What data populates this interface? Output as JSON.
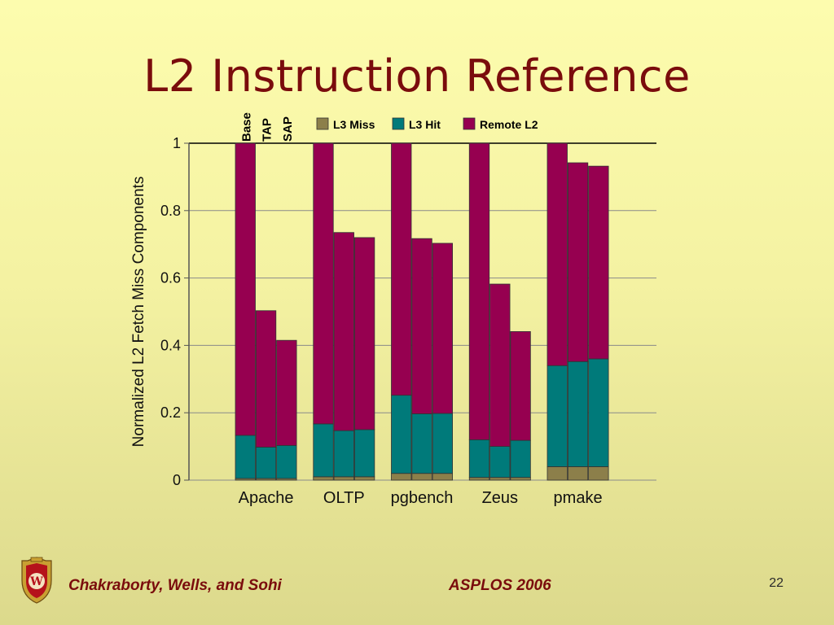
{
  "slide": {
    "title": "L2 Instruction Reference",
    "footer_authors": "Chakraborty, Wells, and Sohi",
    "footer_venue": "ASPLOS 2006",
    "page_number": "22"
  },
  "chart_data": {
    "type": "bar",
    "stacked": true,
    "categories": [
      "Apache",
      "OLTP",
      "pgbench",
      "Zeus",
      "pmake"
    ],
    "variants": [
      "Base",
      "TAP",
      "SAP"
    ],
    "ylabel": "Normalized L2 Fetch Miss Components",
    "ylim": [
      0,
      1
    ],
    "yticks": [
      "0",
      "0.2",
      "0.4",
      "0.6",
      "0.8",
      "1"
    ],
    "grid": true,
    "legend_position": "top",
    "series": [
      {
        "name": "L3 Miss",
        "color": "#8c7f4a",
        "values": [
          [
            0.005,
            0.005,
            0.005
          ],
          [
            0.01,
            0.01,
            0.01
          ],
          [
            0.02,
            0.02,
            0.02
          ],
          [
            0.008,
            0.008,
            0.008
          ],
          [
            0.04,
            0.04,
            0.04
          ]
        ]
      },
      {
        "name": "L3 Hit",
        "color": "#007a7a",
        "values": [
          [
            0.128,
            0.093,
            0.098
          ],
          [
            0.157,
            0.137,
            0.14
          ],
          [
            0.232,
            0.177,
            0.178
          ],
          [
            0.112,
            0.092,
            0.11
          ],
          [
            0.3,
            0.312,
            0.32
          ]
        ]
      },
      {
        "name": "Remote L2",
        "color": "#960050",
        "values": [
          [
            0.867,
            0.405,
            0.312
          ],
          [
            0.833,
            0.588,
            0.57
          ],
          [
            0.748,
            0.52,
            0.505
          ],
          [
            0.88,
            0.482,
            0.323
          ],
          [
            0.66,
            0.59,
            0.572
          ]
        ]
      }
    ]
  }
}
